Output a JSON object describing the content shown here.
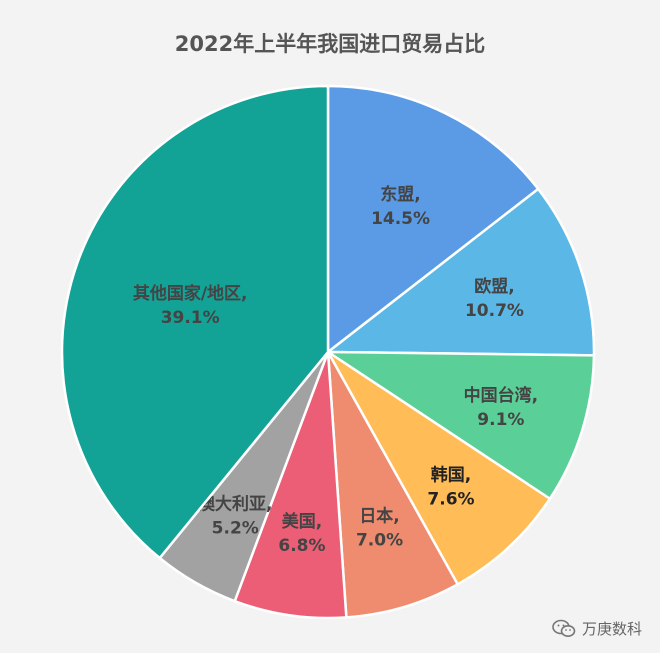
{
  "chart_data": {
    "type": "pie",
    "title": "2022年上半年我国进口贸易占比",
    "slices": [
      {
        "label": "东盟",
        "value": 14.5,
        "value_text": "14.5%",
        "color": "#5b9be6",
        "text_color": "#444444"
      },
      {
        "label": "欧盟",
        "value": 10.7,
        "value_text": "10.7%",
        "color": "#5ab7e6",
        "text_color": "#444444"
      },
      {
        "label": "中国台湾",
        "value": 9.1,
        "value_text": "9.1%",
        "color": "#5bcf98",
        "text_color": "#444444"
      },
      {
        "label": "韩国",
        "value": 7.6,
        "value_text": "7.6%",
        "color": "#ffbc57",
        "text_color": "#222222"
      },
      {
        "label": "日本",
        "value": 7.0,
        "value_text": "7.0%",
        "color": "#ef8c6f",
        "text_color": "#444444"
      },
      {
        "label": "美国",
        "value": 6.8,
        "value_text": "6.8%",
        "color": "#ec5e75",
        "text_color": "#444444"
      },
      {
        "label": "澳大利亚",
        "value": 5.2,
        "value_text": "5.2%",
        "color": "#a2a2a2",
        "text_color": "#444444"
      },
      {
        "label": "其他国家/地区",
        "value": 39.1,
        "value_text": "39.1%",
        "color": "#12a396",
        "text_color": "#444444"
      }
    ]
  },
  "watermark": {
    "text": "万庚数科"
  }
}
